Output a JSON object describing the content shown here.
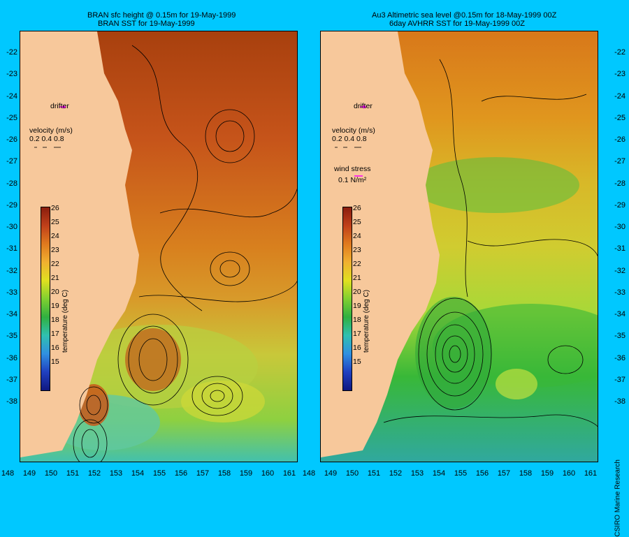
{
  "left_panel": {
    "title_line1": "BRAN sfc height @ 0.15m for 19-May-1999",
    "title_line2": "BRAN SST for 19-May-1999",
    "drifter_label": "drifter",
    "velocity_title": "velocity (m/s)",
    "velocity_scale": "0.2 0.4 0.8"
  },
  "right_panel": {
    "title_line1": "Au3 Altimetric sea level  @0.15m  for 18-May-1999 00Z",
    "title_line2": "6day AVHRR SST for 19-May-1999 00Z",
    "drifter_label": "drifter",
    "velocity_title": "velocity (m/s)",
    "velocity_scale": "0.2 0.4 0.8",
    "wind_title": "wind stress",
    "wind_scale": "0.1 N/m²"
  },
  "colorbar": {
    "label": "temperature (deg C)",
    "ticks": [
      "26",
      "25",
      "24",
      "23",
      "22",
      "21",
      "20",
      "19",
      "18",
      "17",
      "16",
      "15"
    ]
  },
  "axes": {
    "x_ticks": [
      "148",
      "149",
      "150",
      "151",
      "152",
      "153",
      "154",
      "155",
      "156",
      "157",
      "158",
      "159",
      "160",
      "161"
    ],
    "y_ticks": [
      "-22",
      "-23",
      "-24",
      "-25",
      "-26",
      "-27",
      "-28",
      "-29",
      "-30",
      "-31",
      "-32",
      "-33",
      "-34",
      "-35",
      "-36",
      "-37",
      "-38"
    ]
  },
  "credit": "CSIRO Marine Research",
  "colors": {
    "background": "#00c8ff",
    "land": "#f7c89b",
    "warm": "#b5410e",
    "mid": "#e08a1e",
    "yellow": "#e0e020",
    "green": "#30b030",
    "cyan": "#30c8d8",
    "drifter": "#ff00ff"
  }
}
